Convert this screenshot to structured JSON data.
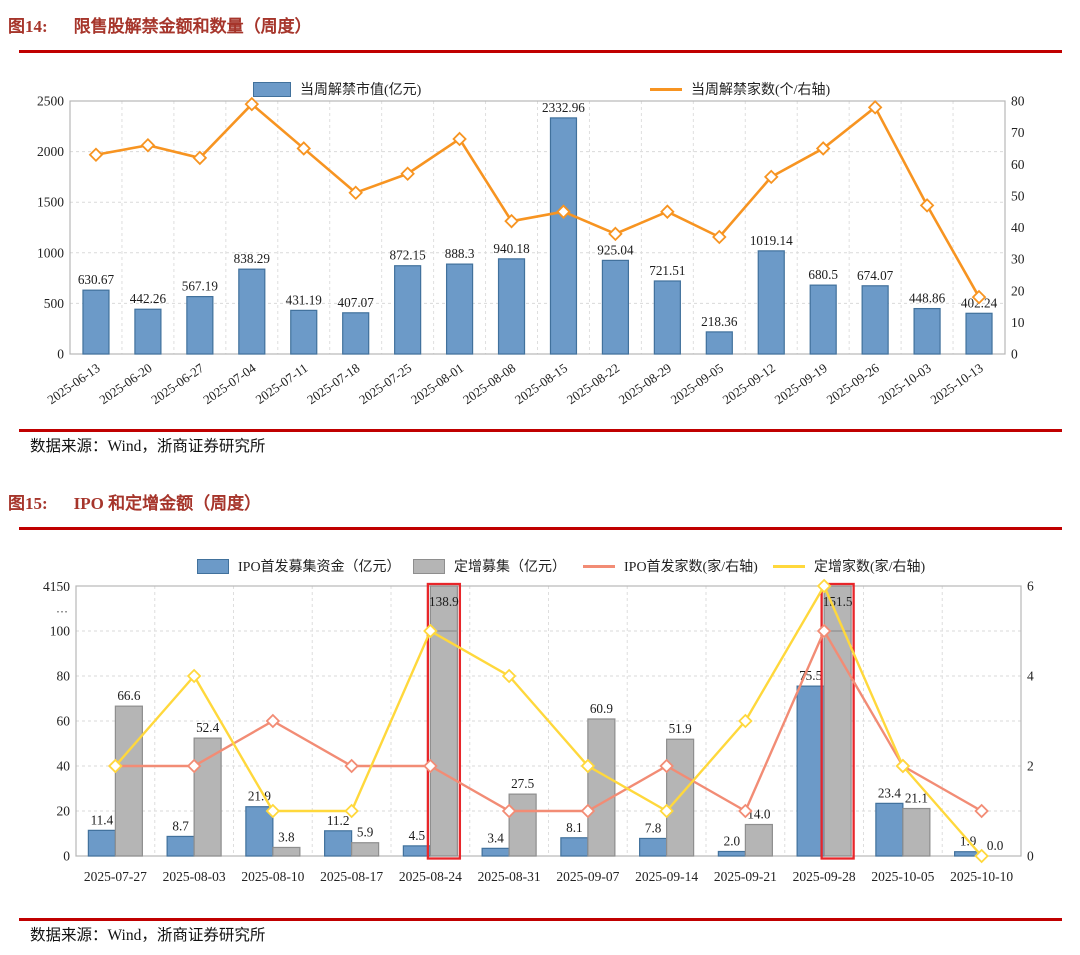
{
  "colors": {
    "accent_rule": "#C00000",
    "title_red": "#A6352B",
    "bar_blue": "#6C9AC8",
    "bar_blue_border": "#41719C",
    "bar_gray": "#B5B5B5",
    "bar_gray_border": "#8E8E8E",
    "line_orange": "#F79421",
    "line_salmon": "#F28C75",
    "line_yellow": "#FFD83C",
    "highlight_red": "#E8262A"
  },
  "figure14": {
    "label": "图14:",
    "title": "限售股解禁金额和数量（周度）",
    "source": "数据来源：Wind，浙商证券研究所",
    "chart_data": {
      "type": "bar+line",
      "title": "限售股解禁金额和数量（周度）",
      "categories": [
        "2025-06-13",
        "2025-06-20",
        "2025-06-27",
        "2025-07-04",
        "2025-07-11",
        "2025-07-18",
        "2025-07-25",
        "2025-08-01",
        "2025-08-08",
        "2025-08-15",
        "2025-08-22",
        "2025-08-29",
        "2025-09-05",
        "2025-09-12",
        "2025-09-19",
        "2025-09-26",
        "2025-10-03",
        "2025-10-13"
      ],
      "series": [
        {
          "name": "当周解禁市值(亿元)",
          "type": "bar",
          "axis": "left",
          "color": "#6C9AC8",
          "border": "#41719C",
          "values": [
            630.67,
            442.26,
            567.19,
            838.29,
            431.19,
            407.07,
            872.15,
            888.3,
            940.18,
            2332.96,
            925.04,
            721.51,
            218.36,
            1019.14,
            680.5,
            674.07,
            448.86,
            402.24
          ],
          "labels": [
            "630.67",
            "442.26",
            "567.19",
            "838.29",
            "431.19",
            "407.07",
            "872.15",
            "888.3",
            "940.18",
            "2332.96",
            "925.04",
            "721.51",
            "218.36",
            "1019.14",
            "680.5",
            "674.07",
            "448.86",
            "402.24"
          ]
        },
        {
          "name": "当周解禁家数(个/右轴)",
          "type": "line",
          "axis": "right",
          "color": "#F79421",
          "values": [
            63,
            66,
            62,
            79,
            65,
            51,
            57,
            68,
            42,
            45,
            38,
            45,
            37,
            56,
            65,
            78,
            47,
            18
          ]
        }
      ],
      "left_axis": {
        "min": 0,
        "max": 2500,
        "ticks": [
          0,
          500,
          1000,
          1500,
          2000,
          2500
        ]
      },
      "right_axis": {
        "min": 0,
        "max": 80,
        "ticks": [
          0,
          10,
          20,
          30,
          40,
          50,
          60,
          70,
          80
        ]
      },
      "grid": "dashed"
    }
  },
  "figure15": {
    "label": "图15:",
    "title": "IPO 和定增金额（周度）",
    "source": "数据来源：Wind，浙商证券研究所",
    "chart_data": {
      "type": "bar+line",
      "title": "IPO 和定增金额（周度）",
      "categories": [
        "2025-07-27",
        "2025-08-03",
        "2025-08-10",
        "2025-08-17",
        "2025-08-24",
        "2025-08-31",
        "2025-09-07",
        "2025-09-14",
        "2025-09-21",
        "2025-09-28",
        "2025-10-05",
        "2025-10-10"
      ],
      "series": [
        {
          "name": "IPO首发募集资金（亿元）",
          "type": "bar",
          "axis": "left",
          "color": "#6C9AC8",
          "border": "#41719C",
          "values": [
            11.4,
            8.7,
            21.9,
            11.2,
            4.5,
            3.4,
            8.1,
            7.8,
            2.0,
            75.5,
            23.4,
            1.9
          ],
          "labels": [
            "11.4",
            "8.7",
            "21.9",
            "11.2",
            "4.5",
            "3.4",
            "8.1",
            "7.8",
            "2.0",
            "75.5",
            "23.4",
            "1.9"
          ]
        },
        {
          "name": "定增募集（亿元）",
          "type": "bar",
          "axis": "left",
          "color": "#B5B5B5",
          "border": "#8E8E8E",
          "values": [
            66.6,
            52.4,
            3.8,
            5.9,
            138.9,
            27.5,
            60.9,
            51.9,
            14.0,
            151.5,
            21.1,
            0.0
          ],
          "labels": [
            "66.6",
            "52.4",
            "3.8",
            "5.9",
            "138.9",
            "27.5",
            "60.9",
            "51.9",
            "14.0",
            "151.5",
            "21.1",
            "0.0"
          ],
          "highlight_indices": [
            4,
            9
          ],
          "highlight_color": "#E8262A"
        },
        {
          "name": "IPO首发家数(家/右轴)",
          "type": "line",
          "axis": "right",
          "color": "#F28C75",
          "values": [
            2,
            2,
            3,
            2,
            2,
            1,
            1,
            2,
            1,
            5,
            2,
            1
          ]
        },
        {
          "name": "定增家数(家/右轴)",
          "type": "line",
          "axis": "right",
          "color": "#FFD83C",
          "values": [
            2,
            4,
            1,
            1,
            5,
            4,
            2,
            1,
            3,
            6,
            2,
            0
          ]
        }
      ],
      "left_axis": {
        "min": 0,
        "max": 4150,
        "display_max": 120,
        "break_label": "…",
        "top_label": "4150",
        "break_line_at": 100,
        "ticks": [
          0,
          20,
          40,
          60,
          80,
          100
        ]
      },
      "right_axis": {
        "min": 0,
        "max": 6,
        "ticks": [
          0,
          2,
          4,
          6
        ]
      },
      "grid": "dashed"
    }
  }
}
